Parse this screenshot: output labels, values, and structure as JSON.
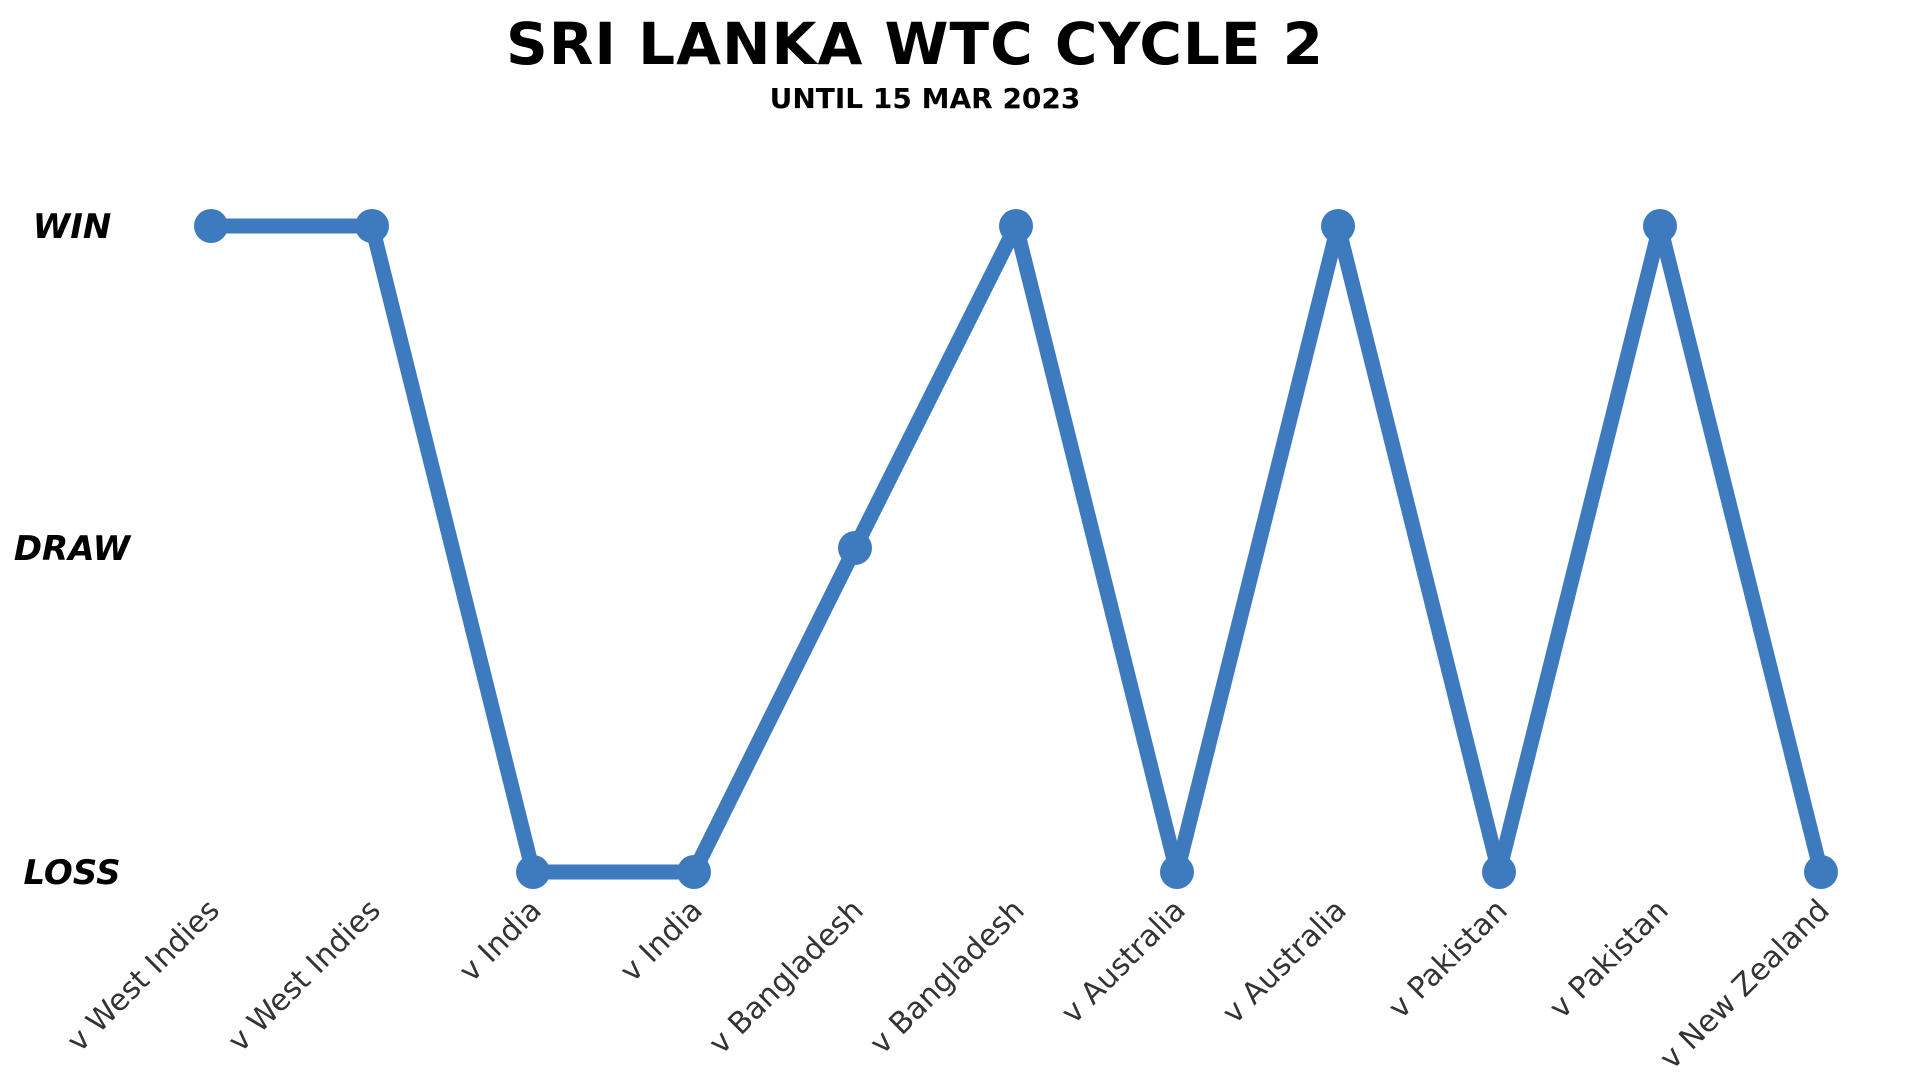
{
  "chart_data": {
    "type": "line",
    "title": "SRI LANKA WTC CYCLE 2",
    "subtitle": "UNTIL 15 MAR 2023",
    "y_categories": [
      "LOSS",
      "DRAW",
      "WIN"
    ],
    "categories": [
      "v West Indies",
      "v West Indies",
      "v India",
      "v India",
      "v Bangladesh",
      "v Bangladesh",
      "v Australia",
      "v Australia",
      "v Pakistan",
      "v Pakistan",
      "v New Zealand"
    ],
    "values": [
      "WIN",
      "WIN",
      "LOSS",
      "LOSS",
      "DRAW",
      "WIN",
      "LOSS",
      "WIN",
      "LOSS",
      "WIN",
      "LOSS"
    ],
    "line_color": "#3d7abe",
    "grid": false,
    "legend": "none"
  }
}
